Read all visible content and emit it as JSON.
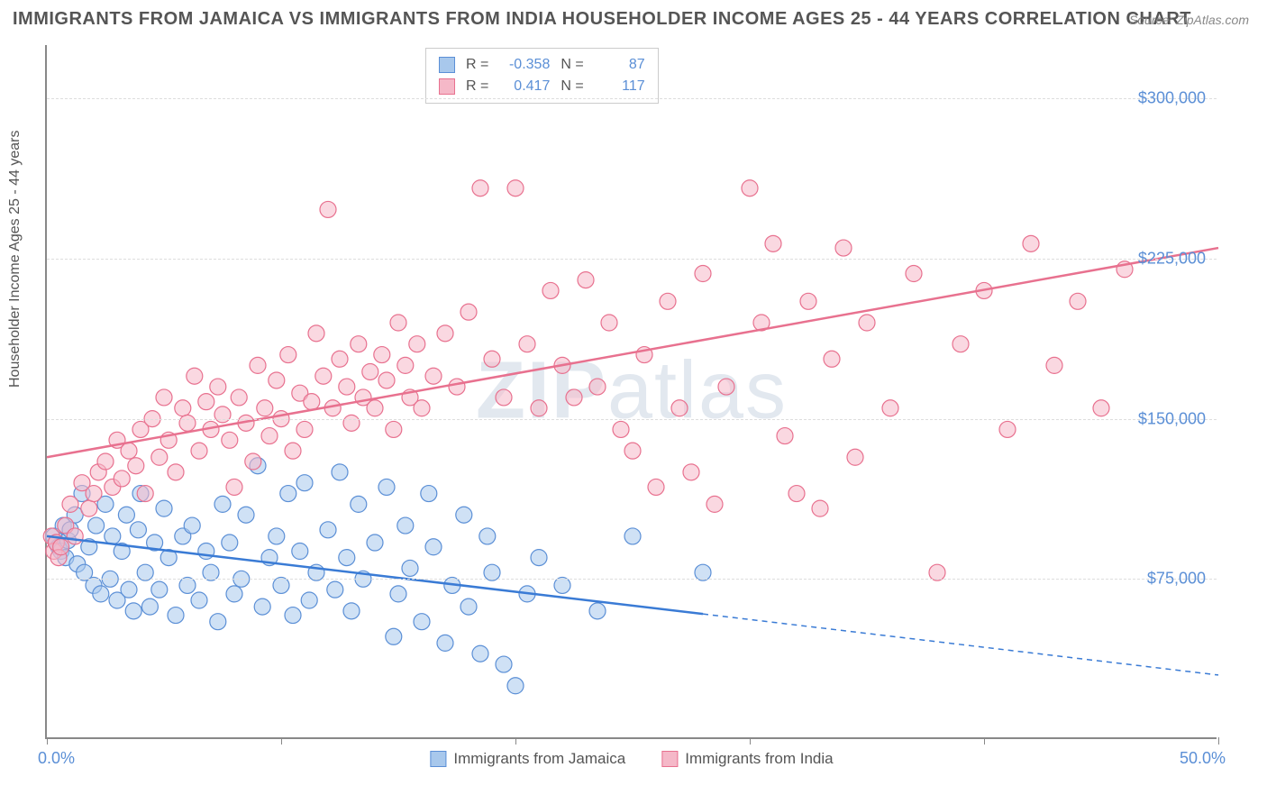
{
  "title": "IMMIGRANTS FROM JAMAICA VS IMMIGRANTS FROM INDIA HOUSEHOLDER INCOME AGES 25 - 44 YEARS CORRELATION CHART",
  "source": "Source: ZipAtlas.com",
  "ylabel": "Householder Income Ages 25 - 44 years",
  "watermark_a": "ZIP",
  "watermark_b": "atlas",
  "chart": {
    "type": "scatter",
    "background_color": "#ffffff",
    "grid_color": "#dddddd",
    "axis_color": "#888888",
    "label_color": "#5b8fd6",
    "xlim": [
      0,
      50
    ],
    "ylim": [
      0,
      325000
    ],
    "xtick_positions": [
      0,
      10,
      20,
      30,
      40,
      50
    ],
    "xtick_labels_shown": {
      "0": "0.0%",
      "50": "50.0%"
    },
    "ytick_positions": [
      75000,
      150000,
      225000,
      300000
    ],
    "ytick_labels": [
      "$75,000",
      "$150,000",
      "$225,000",
      "$300,000"
    ],
    "series": [
      {
        "name": "Immigrants from Jamaica",
        "color_fill": "#a8c8ec",
        "color_stroke": "#5b8fd6",
        "marker_radius": 9,
        "marker_opacity": 0.55,
        "R": "-0.358",
        "N": "87",
        "trend": {
          "y_at_x0": 95000,
          "y_at_x50": 30000,
          "solid_until_x": 28,
          "line_color": "#3a7bd5",
          "line_width": 2.5
        },
        "points": [
          [
            0.3,
            95000
          ],
          [
            0.4,
            92000
          ],
          [
            0.5,
            90000
          ],
          [
            0.6,
            88000
          ],
          [
            0.7,
            100000
          ],
          [
            0.8,
            85000
          ],
          [
            0.9,
            93000
          ],
          [
            1.0,
            98000
          ],
          [
            1.2,
            105000
          ],
          [
            1.3,
            82000
          ],
          [
            1.5,
            115000
          ],
          [
            1.6,
            78000
          ],
          [
            1.8,
            90000
          ],
          [
            2.0,
            72000
          ],
          [
            2.1,
            100000
          ],
          [
            2.3,
            68000
          ],
          [
            2.5,
            110000
          ],
          [
            2.7,
            75000
          ],
          [
            2.8,
            95000
          ],
          [
            3.0,
            65000
          ],
          [
            3.2,
            88000
          ],
          [
            3.4,
            105000
          ],
          [
            3.5,
            70000
          ],
          [
            3.7,
            60000
          ],
          [
            3.9,
            98000
          ],
          [
            4.0,
            115000
          ],
          [
            4.2,
            78000
          ],
          [
            4.4,
            62000
          ],
          [
            4.6,
            92000
          ],
          [
            4.8,
            70000
          ],
          [
            5.0,
            108000
          ],
          [
            5.2,
            85000
          ],
          [
            5.5,
            58000
          ],
          [
            5.8,
            95000
          ],
          [
            6.0,
            72000
          ],
          [
            6.2,
            100000
          ],
          [
            6.5,
            65000
          ],
          [
            6.8,
            88000
          ],
          [
            7.0,
            78000
          ],
          [
            7.3,
            55000
          ],
          [
            7.5,
            110000
          ],
          [
            7.8,
            92000
          ],
          [
            8.0,
            68000
          ],
          [
            8.3,
            75000
          ],
          [
            8.5,
            105000
          ],
          [
            9.0,
            128000
          ],
          [
            9.2,
            62000
          ],
          [
            9.5,
            85000
          ],
          [
            9.8,
            95000
          ],
          [
            10.0,
            72000
          ],
          [
            10.3,
            115000
          ],
          [
            10.5,
            58000
          ],
          [
            10.8,
            88000
          ],
          [
            11.0,
            120000
          ],
          [
            11.2,
            65000
          ],
          [
            11.5,
            78000
          ],
          [
            12.0,
            98000
          ],
          [
            12.3,
            70000
          ],
          [
            12.5,
            125000
          ],
          [
            12.8,
            85000
          ],
          [
            13.0,
            60000
          ],
          [
            13.3,
            110000
          ],
          [
            13.5,
            75000
          ],
          [
            14.0,
            92000
          ],
          [
            14.5,
            118000
          ],
          [
            14.8,
            48000
          ],
          [
            15.0,
            68000
          ],
          [
            15.3,
            100000
          ],
          [
            15.5,
            80000
          ],
          [
            16.0,
            55000
          ],
          [
            16.3,
            115000
          ],
          [
            16.5,
            90000
          ],
          [
            17.0,
            45000
          ],
          [
            17.3,
            72000
          ],
          [
            17.8,
            105000
          ],
          [
            18.0,
            62000
          ],
          [
            18.5,
            40000
          ],
          [
            18.8,
            95000
          ],
          [
            19.0,
            78000
          ],
          [
            19.5,
            35000
          ],
          [
            20.0,
            25000
          ],
          [
            20.5,
            68000
          ],
          [
            21.0,
            85000
          ],
          [
            22.0,
            72000
          ],
          [
            23.5,
            60000
          ],
          [
            25.0,
            95000
          ],
          [
            28.0,
            78000
          ]
        ]
      },
      {
        "name": "Immigrants from India",
        "color_fill": "#f5b8c8",
        "color_stroke": "#e8718f",
        "marker_radius": 9,
        "marker_opacity": 0.55,
        "R": "0.417",
        "N": "117",
        "trend": {
          "y_at_x0": 132000,
          "y_at_x50": 230000,
          "solid_until_x": 50,
          "line_color": "#e8718f",
          "line_width": 2.5
        },
        "points": [
          [
            0.2,
            95000
          ],
          [
            0.3,
            88000
          ],
          [
            0.4,
            92000
          ],
          [
            0.5,
            85000
          ],
          [
            0.6,
            90000
          ],
          [
            0.8,
            100000
          ],
          [
            1.0,
            110000
          ],
          [
            1.2,
            95000
          ],
          [
            1.5,
            120000
          ],
          [
            1.8,
            108000
          ],
          [
            2.0,
            115000
          ],
          [
            2.2,
            125000
          ],
          [
            2.5,
            130000
          ],
          [
            2.8,
            118000
          ],
          [
            3.0,
            140000
          ],
          [
            3.2,
            122000
          ],
          [
            3.5,
            135000
          ],
          [
            3.8,
            128000
          ],
          [
            4.0,
            145000
          ],
          [
            4.2,
            115000
          ],
          [
            4.5,
            150000
          ],
          [
            4.8,
            132000
          ],
          [
            5.0,
            160000
          ],
          [
            5.2,
            140000
          ],
          [
            5.5,
            125000
          ],
          [
            5.8,
            155000
          ],
          [
            6.0,
            148000
          ],
          [
            6.3,
            170000
          ],
          [
            6.5,
            135000
          ],
          [
            6.8,
            158000
          ],
          [
            7.0,
            145000
          ],
          [
            7.3,
            165000
          ],
          [
            7.5,
            152000
          ],
          [
            7.8,
            140000
          ],
          [
            8.0,
            118000
          ],
          [
            8.2,
            160000
          ],
          [
            8.5,
            148000
          ],
          [
            8.8,
            130000
          ],
          [
            9.0,
            175000
          ],
          [
            9.3,
            155000
          ],
          [
            9.5,
            142000
          ],
          [
            9.8,
            168000
          ],
          [
            10.0,
            150000
          ],
          [
            10.3,
            180000
          ],
          [
            10.5,
            135000
          ],
          [
            10.8,
            162000
          ],
          [
            11.0,
            145000
          ],
          [
            11.3,
            158000
          ],
          [
            11.5,
            190000
          ],
          [
            11.8,
            170000
          ],
          [
            12.0,
            248000
          ],
          [
            12.2,
            155000
          ],
          [
            12.5,
            178000
          ],
          [
            12.8,
            165000
          ],
          [
            13.0,
            148000
          ],
          [
            13.3,
            185000
          ],
          [
            13.5,
            160000
          ],
          [
            13.8,
            172000
          ],
          [
            14.0,
            155000
          ],
          [
            14.3,
            180000
          ],
          [
            14.5,
            168000
          ],
          [
            14.8,
            145000
          ],
          [
            15.0,
            195000
          ],
          [
            15.3,
            175000
          ],
          [
            15.5,
            160000
          ],
          [
            15.8,
            185000
          ],
          [
            16.0,
            155000
          ],
          [
            16.5,
            170000
          ],
          [
            17.0,
            190000
          ],
          [
            17.5,
            165000
          ],
          [
            18.0,
            200000
          ],
          [
            18.5,
            258000
          ],
          [
            19.0,
            178000
          ],
          [
            19.5,
            160000
          ],
          [
            20.0,
            258000
          ],
          [
            20.5,
            185000
          ],
          [
            21.0,
            155000
          ],
          [
            21.5,
            210000
          ],
          [
            22.0,
            175000
          ],
          [
            22.5,
            160000
          ],
          [
            23.0,
            215000
          ],
          [
            23.5,
            165000
          ],
          [
            24.0,
            195000
          ],
          [
            24.5,
            145000
          ],
          [
            25.0,
            135000
          ],
          [
            25.5,
            180000
          ],
          [
            26.0,
            118000
          ],
          [
            26.5,
            205000
          ],
          [
            27.0,
            155000
          ],
          [
            27.5,
            125000
          ],
          [
            28.0,
            218000
          ],
          [
            28.5,
            110000
          ],
          [
            29.0,
            165000
          ],
          [
            30.0,
            258000
          ],
          [
            30.5,
            195000
          ],
          [
            31.0,
            232000
          ],
          [
            31.5,
            142000
          ],
          [
            32.0,
            115000
          ],
          [
            32.5,
            205000
          ],
          [
            33.0,
            108000
          ],
          [
            33.5,
            178000
          ],
          [
            34.0,
            230000
          ],
          [
            34.5,
            132000
          ],
          [
            35.0,
            195000
          ],
          [
            36.0,
            155000
          ],
          [
            37.0,
            218000
          ],
          [
            38.0,
            78000
          ],
          [
            39.0,
            185000
          ],
          [
            40.0,
            210000
          ],
          [
            41.0,
            145000
          ],
          [
            42.0,
            232000
          ],
          [
            43.0,
            175000
          ],
          [
            44.0,
            205000
          ],
          [
            45.0,
            155000
          ],
          [
            46.0,
            220000
          ]
        ]
      }
    ],
    "legend_bottom": [
      {
        "label": "Immigrants from Jamaica",
        "fill": "#a8c8ec",
        "stroke": "#5b8fd6"
      },
      {
        "label": "Immigrants from India",
        "fill": "#f5b8c8",
        "stroke": "#e8718f"
      }
    ]
  }
}
